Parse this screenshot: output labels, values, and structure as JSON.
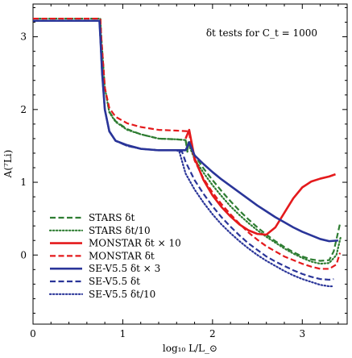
{
  "chart_data": {
    "type": "line",
    "title": "",
    "annotation": "δt tests for C_t = 1000",
    "xlabel": "log₁₀ L/L_⊙",
    "ylabel": "A(⁷Li)",
    "xlim": [
      0,
      3.5
    ],
    "ylim": [
      -0.95,
      3.45
    ],
    "xticks": [
      0,
      1,
      2,
      3
    ],
    "yticks": [
      0,
      1,
      2,
      3
    ],
    "grid": false,
    "legend_position": "bottom-left",
    "series": [
      {
        "name": "STARS δt",
        "color": "#2e7d32",
        "dash": "dashed",
        "width": 2.2,
        "points": [
          [
            0,
            3.25
          ],
          [
            0.75,
            3.25
          ],
          [
            0.76,
            3.0
          ],
          [
            0.8,
            2.3
          ],
          [
            0.85,
            1.97
          ],
          [
            0.92,
            1.84
          ],
          [
            1.05,
            1.73
          ],
          [
            1.2,
            1.66
          ],
          [
            1.4,
            1.6
          ],
          [
            1.6,
            1.59
          ],
          [
            1.7,
            1.58
          ],
          [
            1.72,
            1.42
          ],
          [
            1.73,
            1.55
          ],
          [
            1.8,
            1.37
          ],
          [
            1.9,
            1.19
          ],
          [
            2.0,
            1.03
          ],
          [
            2.1,
            0.88
          ],
          [
            2.2,
            0.74
          ],
          [
            2.3,
            0.61
          ],
          [
            2.4,
            0.49
          ],
          [
            2.5,
            0.38
          ],
          [
            2.6,
            0.28
          ],
          [
            2.7,
            0.19
          ],
          [
            2.8,
            0.11
          ],
          [
            2.9,
            0.04
          ],
          [
            3.0,
            -0.02
          ],
          [
            3.1,
            -0.06
          ],
          [
            3.2,
            -0.08
          ],
          [
            3.3,
            -0.07
          ],
          [
            3.35,
            0.05
          ],
          [
            3.42,
            0.43
          ]
        ]
      },
      {
        "name": "STARS δt/10",
        "color": "#2e7d32",
        "dash": "dotted",
        "width": 2.2,
        "points": [
          [
            0,
            3.25
          ],
          [
            0.75,
            3.25
          ],
          [
            0.76,
            3.0
          ],
          [
            0.8,
            2.3
          ],
          [
            0.85,
            1.96
          ],
          [
            0.92,
            1.83
          ],
          [
            1.05,
            1.72
          ],
          [
            1.2,
            1.66
          ],
          [
            1.4,
            1.6
          ],
          [
            1.6,
            1.59
          ],
          [
            1.7,
            1.58
          ],
          [
            1.72,
            1.42
          ],
          [
            1.73,
            1.53
          ],
          [
            1.8,
            1.32
          ],
          [
            1.9,
            1.13
          ],
          [
            2.0,
            0.96
          ],
          [
            2.1,
            0.81
          ],
          [
            2.2,
            0.67
          ],
          [
            2.3,
            0.55
          ],
          [
            2.4,
            0.44
          ],
          [
            2.5,
            0.34
          ],
          [
            2.6,
            0.25
          ],
          [
            2.7,
            0.17
          ],
          [
            2.8,
            0.09
          ],
          [
            2.9,
            0.02
          ],
          [
            3.0,
            -0.04
          ],
          [
            3.1,
            -0.09
          ],
          [
            3.2,
            -0.12
          ],
          [
            3.3,
            -0.11
          ],
          [
            3.38,
            0.0
          ],
          [
            3.43,
            0.26
          ]
        ]
      },
      {
        "name": "MONSTAR δt × 10",
        "color": "#e41a1c",
        "dash": "solid",
        "width": 2.6,
        "points": [
          [
            1.7,
            1.6
          ],
          [
            1.74,
            1.72
          ],
          [
            1.8,
            1.33
          ],
          [
            1.9,
            1.03
          ],
          [
            2.0,
            0.82
          ],
          [
            2.1,
            0.66
          ],
          [
            2.2,
            0.53
          ],
          [
            2.3,
            0.42
          ],
          [
            2.4,
            0.34
          ],
          [
            2.5,
            0.29
          ],
          [
            2.6,
            0.28
          ],
          [
            2.7,
            0.38
          ],
          [
            2.8,
            0.58
          ],
          [
            2.9,
            0.78
          ],
          [
            3.0,
            0.93
          ],
          [
            3.1,
            1.01
          ],
          [
            3.2,
            1.05
          ],
          [
            3.3,
            1.08
          ],
          [
            3.37,
            1.11
          ]
        ]
      },
      {
        "name": "MONSTAR δt",
        "color": "#e41a1c",
        "dash": "dashed",
        "width": 2.2,
        "points": [
          [
            0,
            3.25
          ],
          [
            0.75,
            3.25
          ],
          [
            0.76,
            3.0
          ],
          [
            0.8,
            2.3
          ],
          [
            0.85,
            2.02
          ],
          [
            0.92,
            1.9
          ],
          [
            1.05,
            1.81
          ],
          [
            1.2,
            1.76
          ],
          [
            1.4,
            1.72
          ],
          [
            1.6,
            1.71
          ],
          [
            1.74,
            1.7
          ],
          [
            1.75,
            1.58
          ],
          [
            1.8,
            1.3
          ],
          [
            1.9,
            1.05
          ],
          [
            2.0,
            0.86
          ],
          [
            2.1,
            0.7
          ],
          [
            2.2,
            0.56
          ],
          [
            2.3,
            0.43
          ],
          [
            2.4,
            0.31
          ],
          [
            2.5,
            0.21
          ],
          [
            2.6,
            0.12
          ],
          [
            2.7,
            0.05
          ],
          [
            2.8,
            -0.02
          ],
          [
            2.9,
            -0.07
          ],
          [
            3.0,
            -0.12
          ],
          [
            3.1,
            -0.16
          ],
          [
            3.2,
            -0.19
          ],
          [
            3.3,
            -0.19
          ],
          [
            3.38,
            -0.13
          ],
          [
            3.42,
            0.03
          ]
        ]
      },
      {
        "name": "SE-V5.5 δt × 3",
        "color": "#2a3599",
        "dash": "solid",
        "width": 2.6,
        "points": [
          [
            0,
            3.22
          ],
          [
            0.74,
            3.22
          ],
          [
            0.75,
            3.0
          ],
          [
            0.77,
            2.5
          ],
          [
            0.8,
            2.0
          ],
          [
            0.85,
            1.7
          ],
          [
            0.92,
            1.57
          ],
          [
            1.05,
            1.51
          ],
          [
            1.2,
            1.46
          ],
          [
            1.4,
            1.44
          ],
          [
            1.6,
            1.44
          ],
          [
            1.7,
            1.44
          ],
          [
            1.72,
            1.49
          ],
          [
            1.74,
            1.55
          ],
          [
            1.8,
            1.37
          ],
          [
            1.9,
            1.25
          ],
          [
            2.0,
            1.14
          ],
          [
            2.1,
            1.04
          ],
          [
            2.2,
            0.95
          ],
          [
            2.3,
            0.86
          ],
          [
            2.4,
            0.77
          ],
          [
            2.5,
            0.68
          ],
          [
            2.6,
            0.6
          ],
          [
            2.7,
            0.52
          ],
          [
            2.8,
            0.45
          ],
          [
            2.9,
            0.38
          ],
          [
            3.0,
            0.32
          ],
          [
            3.1,
            0.27
          ],
          [
            3.2,
            0.22
          ],
          [
            3.3,
            0.19
          ],
          [
            3.4,
            0.2
          ]
        ]
      },
      {
        "name": "SE-V5.5 δt",
        "color": "#2a3599",
        "dash": "dashed",
        "width": 2.2,
        "points": [
          [
            0,
            3.22
          ],
          [
            0.74,
            3.22
          ],
          [
            0.75,
            3.0
          ],
          [
            0.77,
            2.5
          ],
          [
            0.8,
            2.0
          ],
          [
            0.85,
            1.7
          ],
          [
            0.92,
            1.57
          ],
          [
            1.05,
            1.5
          ],
          [
            1.2,
            1.46
          ],
          [
            1.4,
            1.44
          ],
          [
            1.6,
            1.44
          ],
          [
            1.66,
            1.42
          ],
          [
            1.7,
            1.28
          ],
          [
            1.8,
            1.03
          ],
          [
            1.9,
            0.84
          ],
          [
            2.0,
            0.67
          ],
          [
            2.1,
            0.52
          ],
          [
            2.2,
            0.39
          ],
          [
            2.3,
            0.27
          ],
          [
            2.4,
            0.16
          ],
          [
            2.5,
            0.07
          ],
          [
            2.6,
            -0.02
          ],
          [
            2.7,
            -0.09
          ],
          [
            2.8,
            -0.15
          ],
          [
            2.9,
            -0.21
          ],
          [
            3.0,
            -0.26
          ],
          [
            3.1,
            -0.3
          ],
          [
            3.2,
            -0.33
          ],
          [
            3.3,
            -0.34
          ],
          [
            3.35,
            -0.33
          ]
        ]
      },
      {
        "name": "SE-V5.5 δt/10",
        "color": "#2a3599",
        "dash": "dotted",
        "width": 2.2,
        "points": [
          [
            0,
            3.22
          ],
          [
            0.74,
            3.22
          ],
          [
            0.75,
            3.0
          ],
          [
            0.77,
            2.5
          ],
          [
            0.8,
            2.0
          ],
          [
            0.85,
            1.7
          ],
          [
            0.92,
            1.57
          ],
          [
            1.05,
            1.5
          ],
          [
            1.2,
            1.46
          ],
          [
            1.4,
            1.44
          ],
          [
            1.6,
            1.44
          ],
          [
            1.63,
            1.42
          ],
          [
            1.7,
            1.12
          ],
          [
            1.8,
            0.9
          ],
          [
            1.9,
            0.72
          ],
          [
            2.0,
            0.56
          ],
          [
            2.1,
            0.42
          ],
          [
            2.2,
            0.3
          ],
          [
            2.3,
            0.19
          ],
          [
            2.4,
            0.09
          ],
          [
            2.5,
            0.0
          ],
          [
            2.6,
            -0.08
          ],
          [
            2.7,
            -0.15
          ],
          [
            2.8,
            -0.22
          ],
          [
            2.9,
            -0.28
          ],
          [
            3.0,
            -0.33
          ],
          [
            3.1,
            -0.37
          ],
          [
            3.2,
            -0.41
          ],
          [
            3.3,
            -0.43
          ],
          [
            3.35,
            -0.43
          ]
        ]
      }
    ]
  }
}
